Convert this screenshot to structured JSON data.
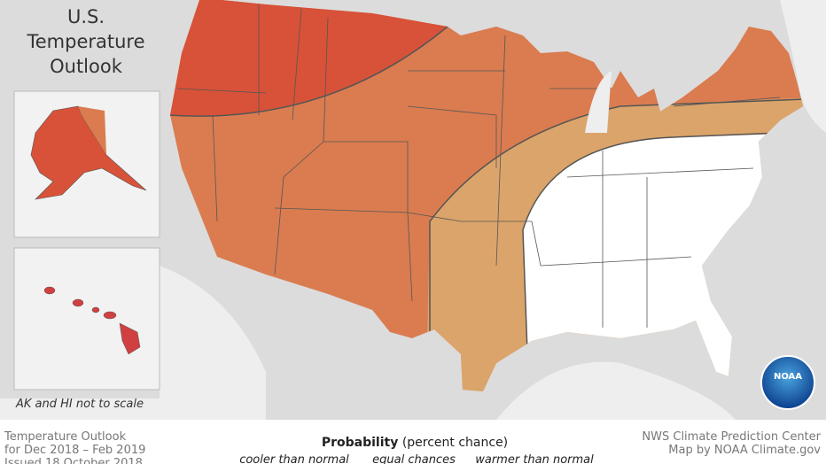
{
  "header": {
    "title": [
      "U.S.",
      "Temperature",
      "Outlook"
    ]
  },
  "inset": {
    "note": "AK and HI not to scale"
  },
  "footer": {
    "left": [
      "Temperature Outlook",
      "for Dec 2018 – Feb 2019",
      "Issued 18 October 2018"
    ],
    "right": [
      "NWS Climate Prediction Center",
      "Map by NOAA Climate.gov"
    ]
  },
  "legend": {
    "title": "Probability",
    "subtitle": "(percent chance)",
    "labels": [
      "cooler than normal",
      "equal chances",
      "warmer than normal"
    ]
  },
  "logo": {
    "text": "NOAA"
  }
}
